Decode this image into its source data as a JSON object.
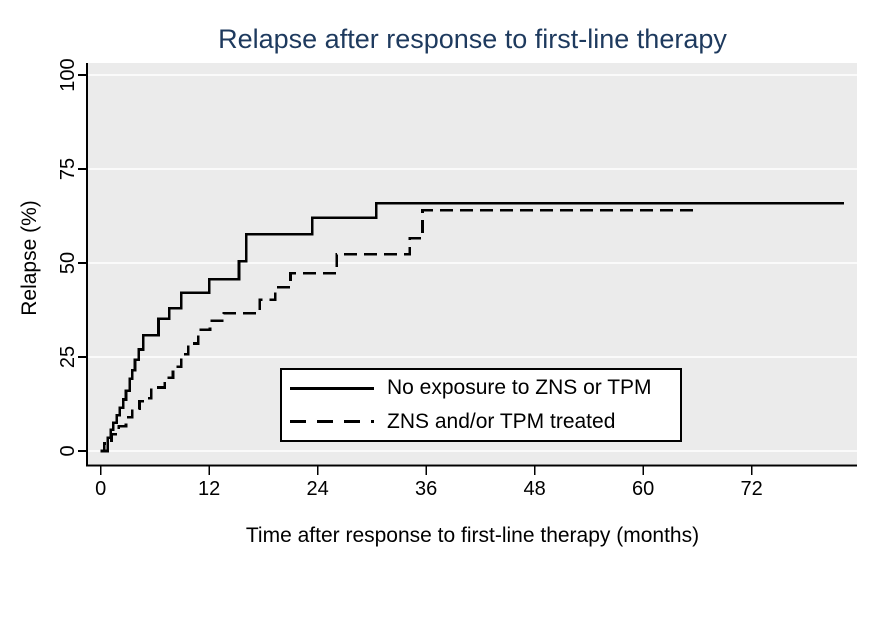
{
  "chart_data": {
    "type": "line",
    "subtype": "kaplan-meier-step-failure-curve",
    "title": "Relapse after response to first-line therapy",
    "xlabel": "Time after response to first-line therapy (months)",
    "ylabel": "Relapse (%)",
    "xlim": [
      -1.4,
      83.66
    ],
    "ylim": [
      -3.46,
      103.2
    ],
    "xticks": [
      0,
      12,
      24,
      36,
      48,
      60,
      72
    ],
    "yticks": [
      0,
      25,
      50,
      75,
      100
    ],
    "grid": {
      "axis": "y",
      "gridline_color": "#fafafa",
      "plot_bg": "#ebebeb",
      "axis_color": "#000000"
    },
    "title_color": "#1e3a5e",
    "legend": {
      "position": "inside lower-center-right",
      "entries": [
        "No exposure to ZNS or TPM",
        "ZNS and/or TPM treated"
      ]
    },
    "series": [
      {
        "name": "No exposure to ZNS or TPM",
        "line_style": "solid",
        "color": "#000000",
        "points": [
          [
            0,
            0
          ],
          [
            0.8,
            3.5
          ],
          [
            1.1,
            5.6
          ],
          [
            1.4,
            7.5
          ],
          [
            1.8,
            9.5
          ],
          [
            2.1,
            11.5
          ],
          [
            2.5,
            13.7
          ],
          [
            2.8,
            16.0
          ],
          [
            3.2,
            19.2
          ],
          [
            3.5,
            21.5
          ],
          [
            3.8,
            24.3
          ],
          [
            4.2,
            27.0
          ],
          [
            4.7,
            30.8
          ],
          [
            6.4,
            35.2
          ],
          [
            7.6,
            38.0
          ],
          [
            8.9,
            42.1
          ],
          [
            12.0,
            45.7
          ],
          [
            15.3,
            50.5
          ],
          [
            16.1,
            57.6
          ],
          [
            23.4,
            62.0
          ],
          [
            30.5,
            65.9
          ],
          [
            82.2,
            65.9
          ]
        ]
      },
      {
        "name": "ZNS and/or TPM treated",
        "line_style": "dashed",
        "color": "#000000",
        "points": [
          [
            0,
            0
          ],
          [
            0.4,
            2.0
          ],
          [
            1.2,
            4.5
          ],
          [
            2.0,
            6.6
          ],
          [
            2.8,
            9.0
          ],
          [
            3.5,
            11.2
          ],
          [
            4.3,
            13.2
          ],
          [
            5.0,
            14.0
          ],
          [
            5.6,
            16.9
          ],
          [
            7.1,
            19.5
          ],
          [
            8.0,
            22.4
          ],
          [
            8.9,
            25.7
          ],
          [
            9.7,
            28.6
          ],
          [
            10.8,
            32.2
          ],
          [
            12.1,
            34.6
          ],
          [
            13.6,
            36.6
          ],
          [
            17.6,
            40.2
          ],
          [
            19.3,
            43.5
          ],
          [
            21.0,
            47.3
          ],
          [
            26.1,
            52.3
          ],
          [
            34.2,
            56.6
          ],
          [
            35.6,
            64.0
          ],
          [
            65.9,
            64.0
          ]
        ]
      }
    ]
  }
}
